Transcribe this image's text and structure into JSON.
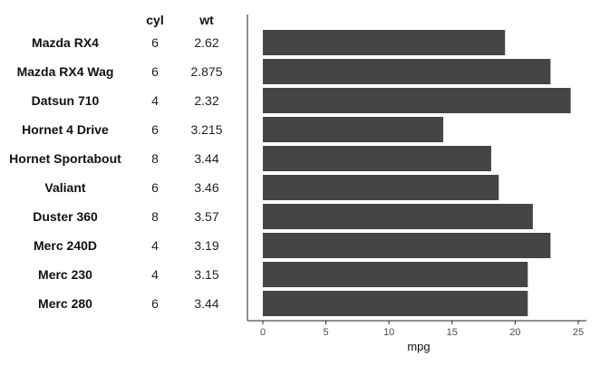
{
  "chart_data": {
    "type": "bar",
    "orientation": "horizontal",
    "columns": [
      "cyl",
      "wt"
    ],
    "categories": [
      "Mazda RX4",
      "Mazda RX4 Wag",
      "Datsun 710",
      "Hornet 4 Drive",
      "Hornet Sportabout",
      "Valiant",
      "Duster 360",
      "Merc 240D",
      "Merc 230",
      "Merc 280"
    ],
    "cyl": [
      "6",
      "6",
      "4",
      "6",
      "8",
      "6",
      "8",
      "4",
      "4",
      "6"
    ],
    "wt": [
      "2.62",
      "2.875",
      "2.32",
      "3.215",
      "3.44",
      "3.46",
      "3.57",
      "3.19",
      "3.15",
      "3.44"
    ],
    "values": [
      19.2,
      22.8,
      24.4,
      14.3,
      18.1,
      18.7,
      21.4,
      22.8,
      21.0,
      21.0
    ],
    "xlabel": "mpg",
    "xlim": [
      0,
      25
    ],
    "xticks": [
      "0",
      "5",
      "10",
      "15",
      "20",
      "25"
    ],
    "bar_color": "#454545",
    "grid": false
  }
}
